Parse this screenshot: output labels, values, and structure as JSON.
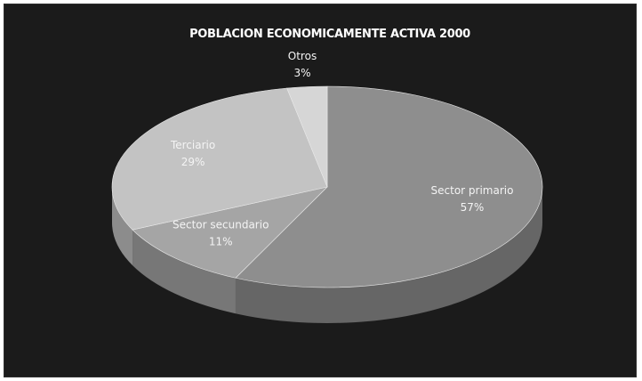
{
  "chart_data": {
    "type": "pie",
    "title": "POBLACION ECONOMICAMENTE ACTIVA 2000",
    "slices": [
      {
        "label": "Sector primario",
        "value": 57,
        "value_label": "57%",
        "color": "#8e8e8e"
      },
      {
        "label": "Sector secundario",
        "value": 11,
        "value_label": "11%",
        "color": "#a5a5a5"
      },
      {
        "label": "Terciario",
        "value": 29,
        "value_label": "29%",
        "color": "#c3c3c3"
      },
      {
        "label": "Otros",
        "value": 3,
        "value_label": "3%",
        "color": "#d6d6d6"
      }
    ],
    "legend": "none",
    "style": "3d-tilted"
  }
}
